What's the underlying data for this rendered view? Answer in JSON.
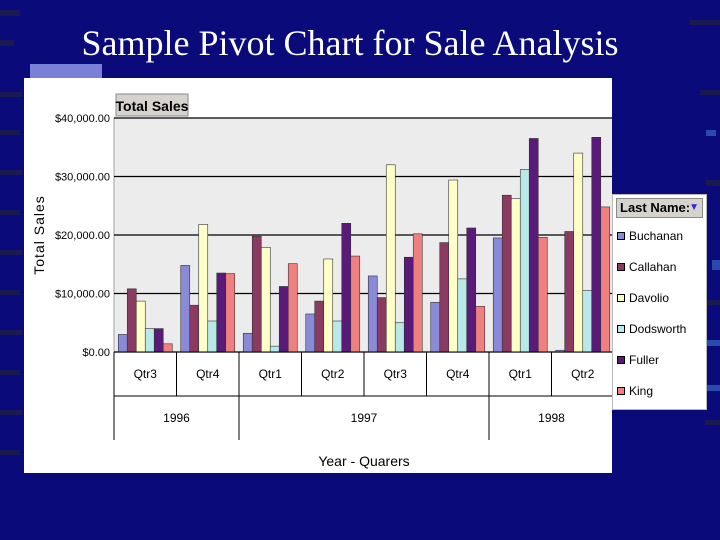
{
  "slide": {
    "title": "Sample Pivot Chart for Sale Analysis",
    "background": "#0a0a7a"
  },
  "chart_data": {
    "type": "bar",
    "title": "Total Sales",
    "ylabel": "Total Sales",
    "xlabel": "Year - Quarers",
    "ylim": [
      0,
      40000
    ],
    "yticks": [
      {
        "value": 0,
        "label": "$0.00"
      },
      {
        "value": 10000,
        "label": "$10,000.00"
      },
      {
        "value": 20000,
        "label": "$20,000.00"
      },
      {
        "value": 30000,
        "label": "$30,000.00"
      },
      {
        "value": 40000,
        "label": "$40,000.00"
      }
    ],
    "grid": true,
    "legend_position": "right",
    "legend_title": "Last Name:",
    "categories": [
      "Qtr3",
      "Qtr4",
      "Qtr1",
      "Qtr2",
      "Qtr3",
      "Qtr4",
      "Qtr1",
      "Qtr2"
    ],
    "groups": [
      {
        "label": "1996",
        "count": 2
      },
      {
        "label": "1997",
        "count": 4
      },
      {
        "label": "1998",
        "count": 2
      }
    ],
    "series": [
      {
        "name": "Buchanan",
        "color": "#8a8ad8",
        "values": [
          3000,
          14800,
          3200,
          6500,
          13000,
          8500,
          19500,
          300
        ]
      },
      {
        "name": "Callahan",
        "color": "#8b3a62",
        "values": [
          10800,
          8000,
          19800,
          8700,
          9300,
          18700,
          26800,
          20600
        ]
      },
      {
        "name": "Davolio",
        "color": "#ffffc8",
        "values": [
          8700,
          21800,
          17900,
          15900,
          32000,
          29400,
          26200,
          34000
        ]
      },
      {
        "name": "Dodsworth",
        "color": "#b8e8e8",
        "values": [
          4000,
          5300,
          1000,
          5300,
          5000,
          12500,
          31200,
          10500
        ]
      },
      {
        "name": "Fuller",
        "color": "#5a1a7a",
        "values": [
          4000,
          13500,
          11200,
          22000,
          16200,
          21200,
          36500,
          36700
        ]
      },
      {
        "name": "King",
        "color": "#f08080",
        "values": [
          1400,
          13400,
          15100,
          16400,
          20200,
          7800,
          19600,
          24800
        ]
      }
    ]
  }
}
